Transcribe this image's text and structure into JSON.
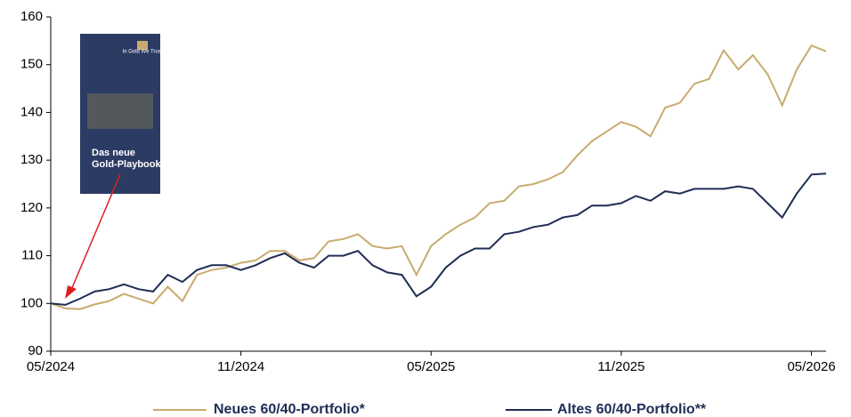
{
  "chart_data": {
    "type": "line",
    "categories": [
      "05/2024",
      null,
      null,
      null,
      null,
      null,
      null,
      null,
      null,
      null,
      null,
      null,
      null,
      "11/2024",
      null,
      null,
      null,
      null,
      null,
      null,
      null,
      null,
      null,
      null,
      null,
      null,
      "05/2025",
      null,
      null,
      null,
      null,
      null,
      null,
      null,
      null,
      null,
      null,
      null,
      null,
      "11/2025",
      null,
      null,
      null,
      null,
      null,
      null,
      null,
      null,
      null,
      null,
      null,
      null,
      "05/2026",
      null
    ],
    "series": [
      {
        "name": "Neues 60/40-Portfolio*",
        "color": "#c8ab6e",
        "values": [
          100,
          99,
          98.8,
          99.8,
          100.5,
          102,
          101,
          100,
          103.5,
          100.5,
          106,
          107,
          107.5,
          108.5,
          109,
          111,
          111,
          109,
          109.5,
          113,
          113.5,
          114.5,
          112,
          111.5,
          112,
          106,
          112,
          114.5,
          116.5,
          118,
          121,
          121.5,
          124.5,
          125,
          126,
          127.5,
          131,
          134,
          136,
          138,
          137,
          135,
          141,
          142,
          146,
          147,
          153,
          149,
          152,
          148,
          141.5,
          149,
          154,
          152.8
        ]
      },
      {
        "name": "Altes 60/40-Portfolio**",
        "color": "#1f2d55",
        "values": [
          100,
          99.7,
          101,
          102.5,
          103,
          104,
          103,
          102.5,
          106,
          104.5,
          107,
          108,
          108,
          107,
          108,
          109.5,
          110.5,
          108.5,
          107.5,
          110,
          110,
          111,
          108,
          106.5,
          106,
          101.5,
          103.5,
          107.5,
          110,
          111.5,
          111.5,
          114.5,
          115,
          116,
          116.5,
          118,
          118.5,
          120.5,
          120.5,
          121,
          122.5,
          121.5,
          123.5,
          123,
          124,
          124,
          124,
          124.5,
          124,
          121,
          118,
          123,
          127,
          127.2
        ]
      }
    ],
    "ylim": [
      90,
      160
    ],
    "yticks": [
      90,
      100,
      110,
      120,
      130,
      140,
      150,
      160
    ],
    "grid": false,
    "legend": "bottom",
    "annotations": [
      "In Gold We Trust",
      "Das neue",
      "Gold-Playbook"
    ]
  }
}
